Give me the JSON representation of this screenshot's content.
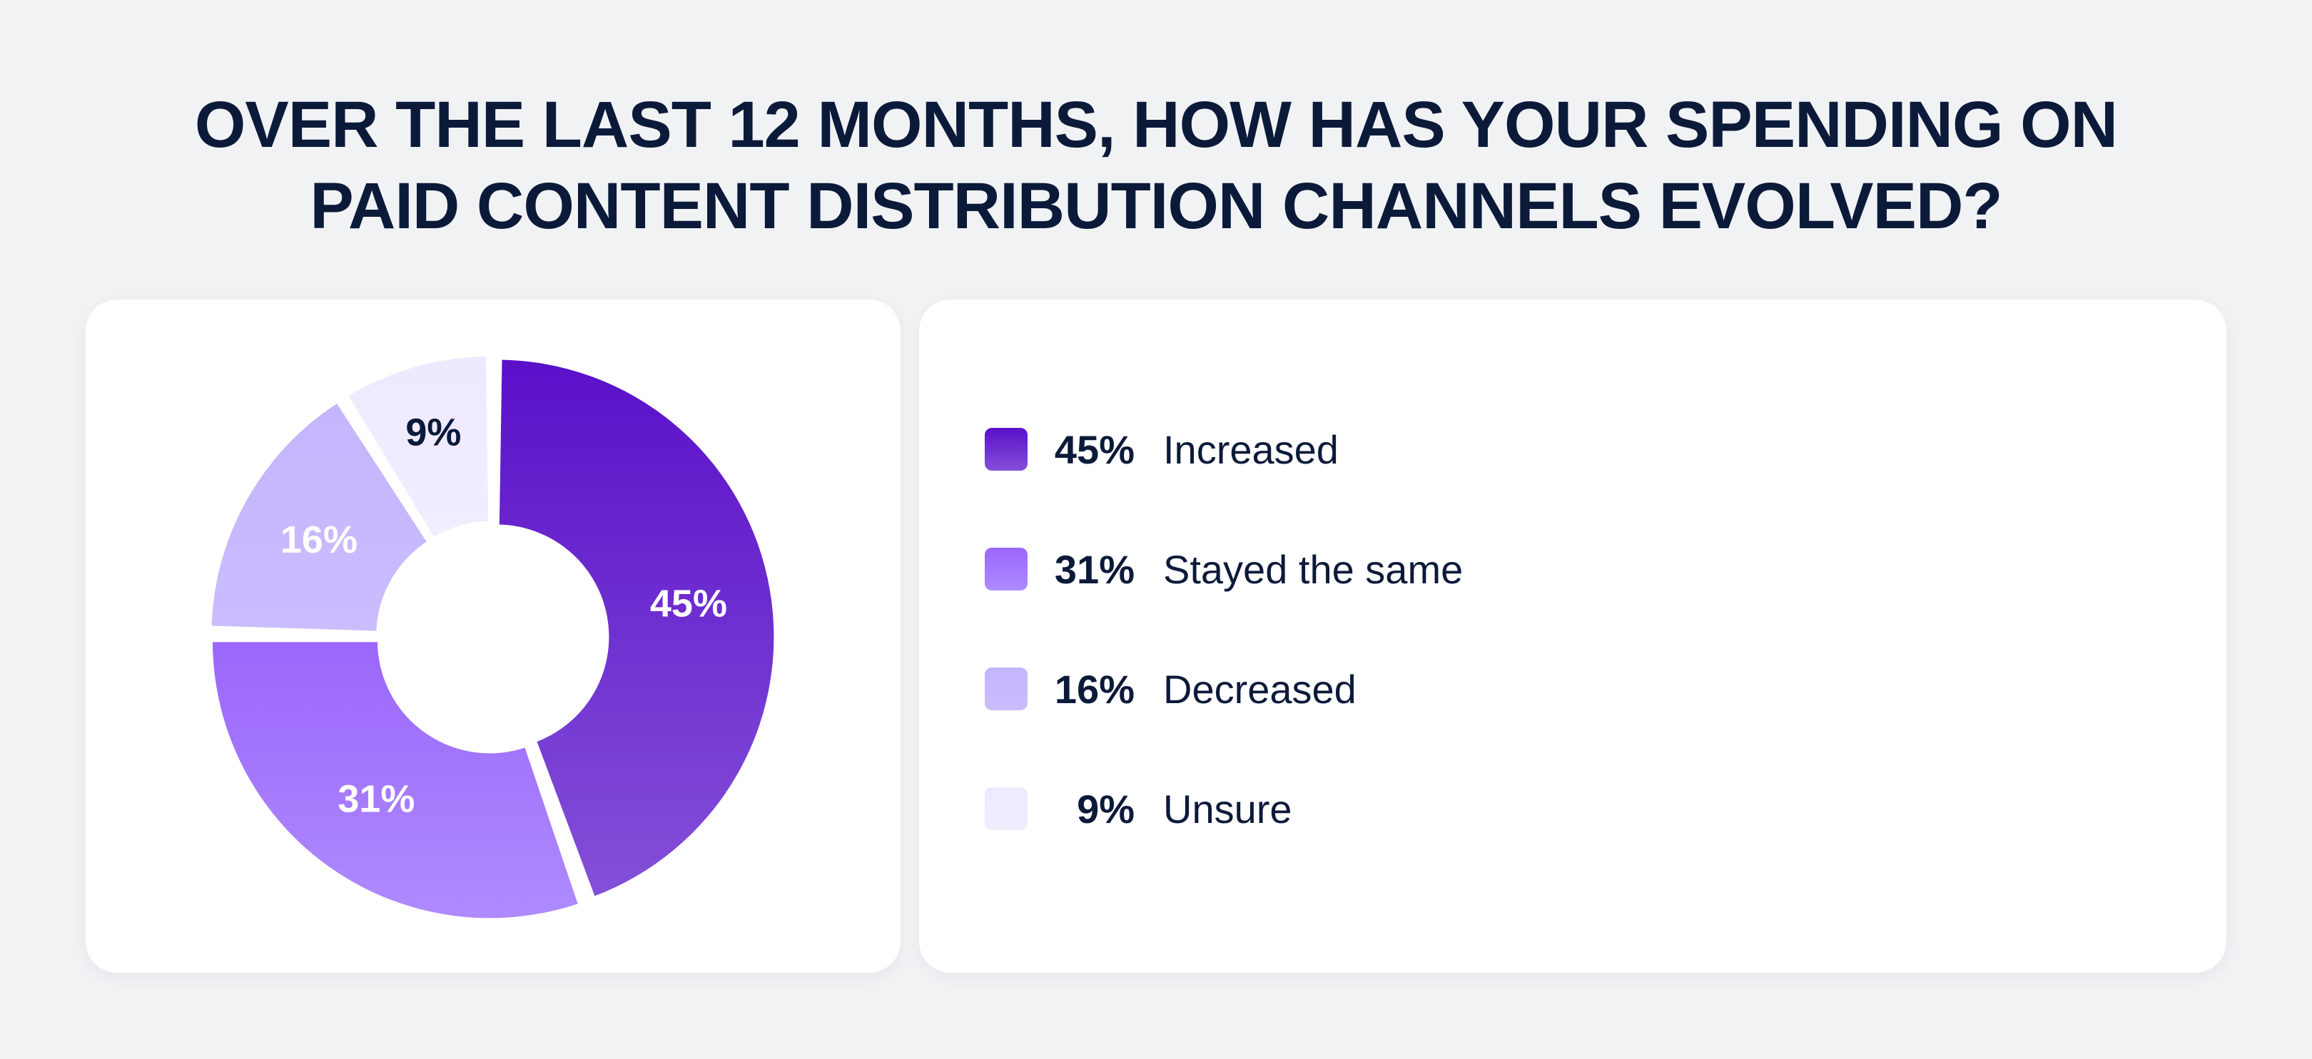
{
  "title_line1": "OVER THE LAST 12 MONTHS, HOW HAS YOUR SPENDING ON",
  "title_line2": "PAID CONTENT DISTRIBUTION CHANNELS EVOLVED?",
  "chart_data": {
    "type": "pie",
    "variant": "donut",
    "categories": [
      "Increased",
      "Stayed the same",
      "Decreased",
      "Unsure"
    ],
    "values": [
      45,
      31,
      16,
      9
    ],
    "labels": [
      "45%",
      "31%",
      "16%",
      "9%"
    ],
    "colors": [
      [
        "#5a10c9",
        "#8450d8"
      ],
      [
        "#9b66fa",
        "#ae8bff"
      ],
      [
        "#c4b5fd",
        "#cbbcfe"
      ],
      [
        "#eee9fe",
        "#f1edff"
      ]
    ],
    "label_colors": [
      "#ffffff",
      "#ffffff",
      "#ffffff",
      "#0c1a3a"
    ],
    "legend_placement": "right"
  }
}
